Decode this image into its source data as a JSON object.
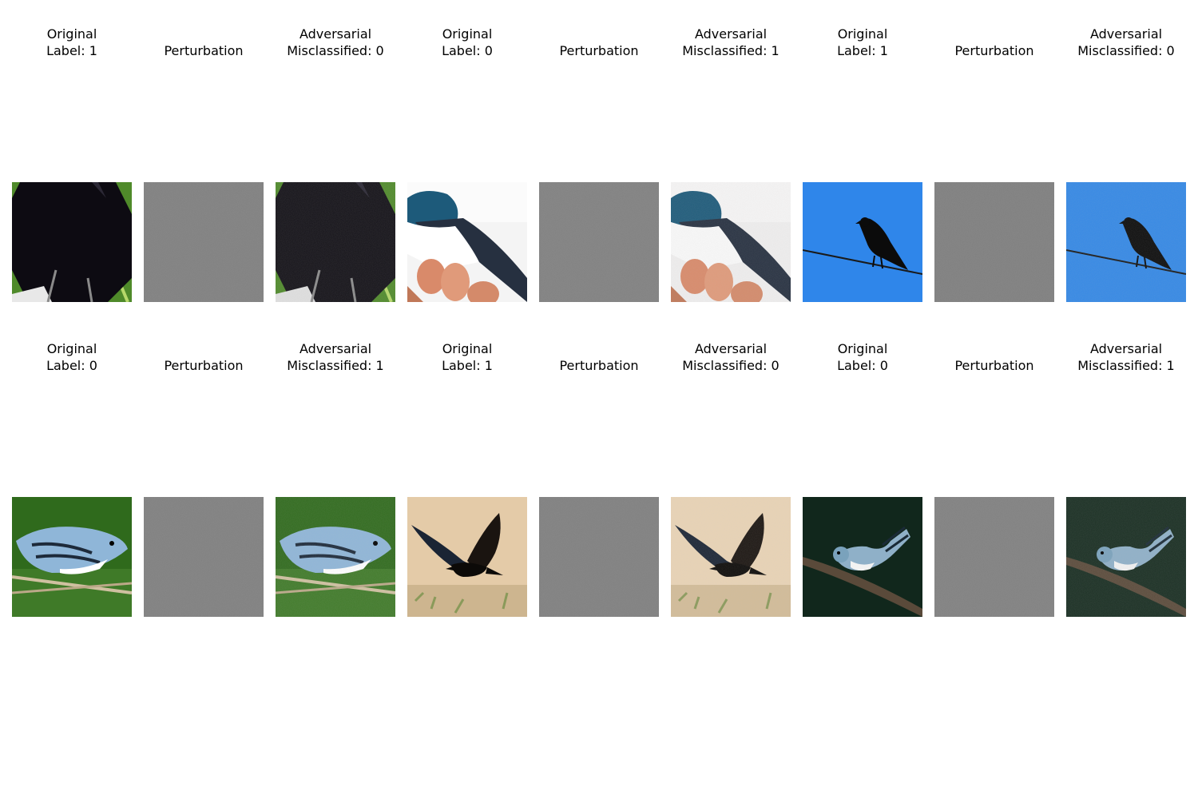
{
  "rows": [
    {
      "groups": [
        {
          "original": {
            "title": "Original",
            "label": "Label: 1",
            "scene": "crow-closeup"
          },
          "perturbation": {
            "title": "Perturbation"
          },
          "adversarial": {
            "title": "Adversarial",
            "label": "Misclassified: 0",
            "scene": "crow-closeup"
          }
        },
        {
          "original": {
            "title": "Original",
            "label": "Label: 0",
            "scene": "swallow-in-hand"
          },
          "perturbation": {
            "title": "Perturbation"
          },
          "adversarial": {
            "title": "Adversarial",
            "label": "Misclassified: 1",
            "scene": "swallow-in-hand"
          }
        },
        {
          "original": {
            "title": "Original",
            "label": "Label: 1",
            "scene": "crow-on-wire-blue-sky"
          },
          "perturbation": {
            "title": "Perturbation"
          },
          "adversarial": {
            "title": "Adversarial",
            "label": "Misclassified: 0",
            "scene": "crow-on-wire-blue-sky"
          }
        }
      ]
    },
    {
      "groups": [
        {
          "original": {
            "title": "Original",
            "label": "Label: 0",
            "scene": "warbler-on-branch-green"
          },
          "perturbation": {
            "title": "Perturbation"
          },
          "adversarial": {
            "title": "Adversarial",
            "label": "Misclassified: 1",
            "scene": "warbler-on-branch-green"
          }
        },
        {
          "original": {
            "title": "Original",
            "label": "Label: 1",
            "scene": "crow-in-flight"
          },
          "perturbation": {
            "title": "Perturbation"
          },
          "adversarial": {
            "title": "Adversarial",
            "label": "Misclassified: 0",
            "scene": "crow-in-flight"
          }
        },
        {
          "original": {
            "title": "Original",
            "label": "Label: 0",
            "scene": "warbler-on-branch-dark"
          },
          "perturbation": {
            "title": "Perturbation"
          },
          "adversarial": {
            "title": "Adversarial",
            "label": "Misclassified: 1",
            "scene": "warbler-on-branch-dark"
          }
        }
      ]
    }
  ]
}
